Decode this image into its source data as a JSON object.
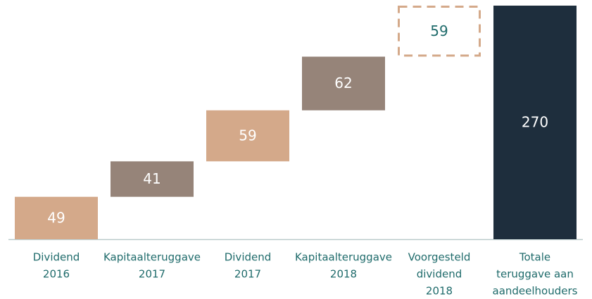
{
  "chart_data": {
    "type": "waterfall",
    "categories": [
      [
        "Dividend",
        "2016"
      ],
      [
        "Kapitaalteruggave",
        "2017"
      ],
      [
        "Dividend",
        "2017"
      ],
      [
        "Kapitaalteruggave",
        "2018"
      ],
      [
        "Voorgesteld",
        "dividend",
        "2018"
      ],
      [
        "Totale",
        "teruggave aan",
        "aandeelhouders"
      ]
    ],
    "values": [
      49,
      41,
      59,
      62,
      59,
      270
    ],
    "colors": [
      "#d4a98a",
      "#968479",
      "#d4a98a",
      "#968479",
      "#d4a98a",
      "#1e2e3d"
    ],
    "bar_styles": [
      "solid",
      "solid",
      "solid",
      "solid",
      "dashed",
      "solid"
    ],
    "is_total": [
      false,
      false,
      false,
      false,
      false,
      true
    ],
    "label_colors": [
      "#ffffff",
      "#ffffff",
      "#ffffff",
      "#ffffff",
      "#1f6b6b",
      "#ffffff"
    ],
    "ylim": [
      0,
      270
    ]
  }
}
